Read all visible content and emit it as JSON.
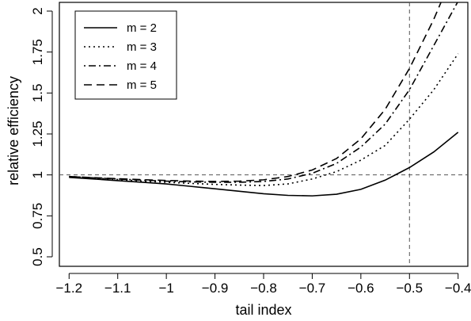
{
  "chart_data": {
    "type": "line",
    "xlabel": "tail index",
    "ylabel": "relative efficiency",
    "xlim": [
      -1.22,
      -0.38
    ],
    "ylim": [
      0.5,
      2.0
    ],
    "x_ticks": [
      -1.2,
      -1.1,
      -1.0,
      -0.9,
      -0.8,
      -0.7,
      -0.6,
      -0.5,
      -0.4
    ],
    "x_tick_labels": [
      "−1.2",
      "−1.1",
      "−1",
      "−0.9",
      "−0.8",
      "−0.7",
      "−0.6",
      "−0.5",
      "−0.4"
    ],
    "y_ticks": [
      0.5,
      0.75,
      1.0,
      1.25,
      1.5,
      1.75,
      2.0
    ],
    "y_tick_labels": [
      "0.5",
      "0.75",
      "1",
      "1.25",
      "1.5",
      "1.75",
      "2"
    ],
    "grid": false,
    "reference_lines": {
      "horizontal_y": 1.0,
      "vertical_x": -0.5,
      "style": "dashed"
    },
    "legend_position": "top-left",
    "x": [
      -1.2,
      -1.15,
      -1.1,
      -1.05,
      -1.0,
      -0.95,
      -0.9,
      -0.85,
      -0.8,
      -0.75,
      -0.7,
      -0.65,
      -0.6,
      -0.55,
      -0.5,
      -0.45,
      -0.4
    ],
    "series": [
      {
        "name": "m = 2",
        "dash": "solid",
        "values": [
          0.985,
          0.975,
          0.965,
          0.955,
          0.945,
          0.93,
          0.915,
          0.9,
          0.885,
          0.875,
          0.872,
          0.882,
          0.912,
          0.968,
          1.045,
          1.14,
          1.26
        ]
      },
      {
        "name": "m = 3",
        "dash": "dotted",
        "values": [
          0.99,
          0.98,
          0.972,
          0.962,
          0.955,
          0.948,
          0.942,
          0.938,
          0.935,
          0.945,
          0.975,
          1.02,
          1.09,
          1.18,
          1.34,
          1.52,
          1.74
        ]
      },
      {
        "name": "m = 4",
        "dash": "dashdot",
        "values": [
          0.99,
          0.982,
          0.975,
          0.968,
          0.962,
          0.957,
          0.955,
          0.955,
          0.96,
          0.975,
          1.01,
          1.07,
          1.17,
          1.31,
          1.52,
          1.79,
          2.06
        ]
      },
      {
        "name": "m = 5",
        "dash": "dashed",
        "values": [
          0.99,
          0.983,
          0.977,
          0.971,
          0.966,
          0.962,
          0.96,
          0.962,
          0.97,
          0.99,
          1.03,
          1.1,
          1.22,
          1.4,
          1.65,
          1.95,
          2.3
        ]
      }
    ]
  }
}
